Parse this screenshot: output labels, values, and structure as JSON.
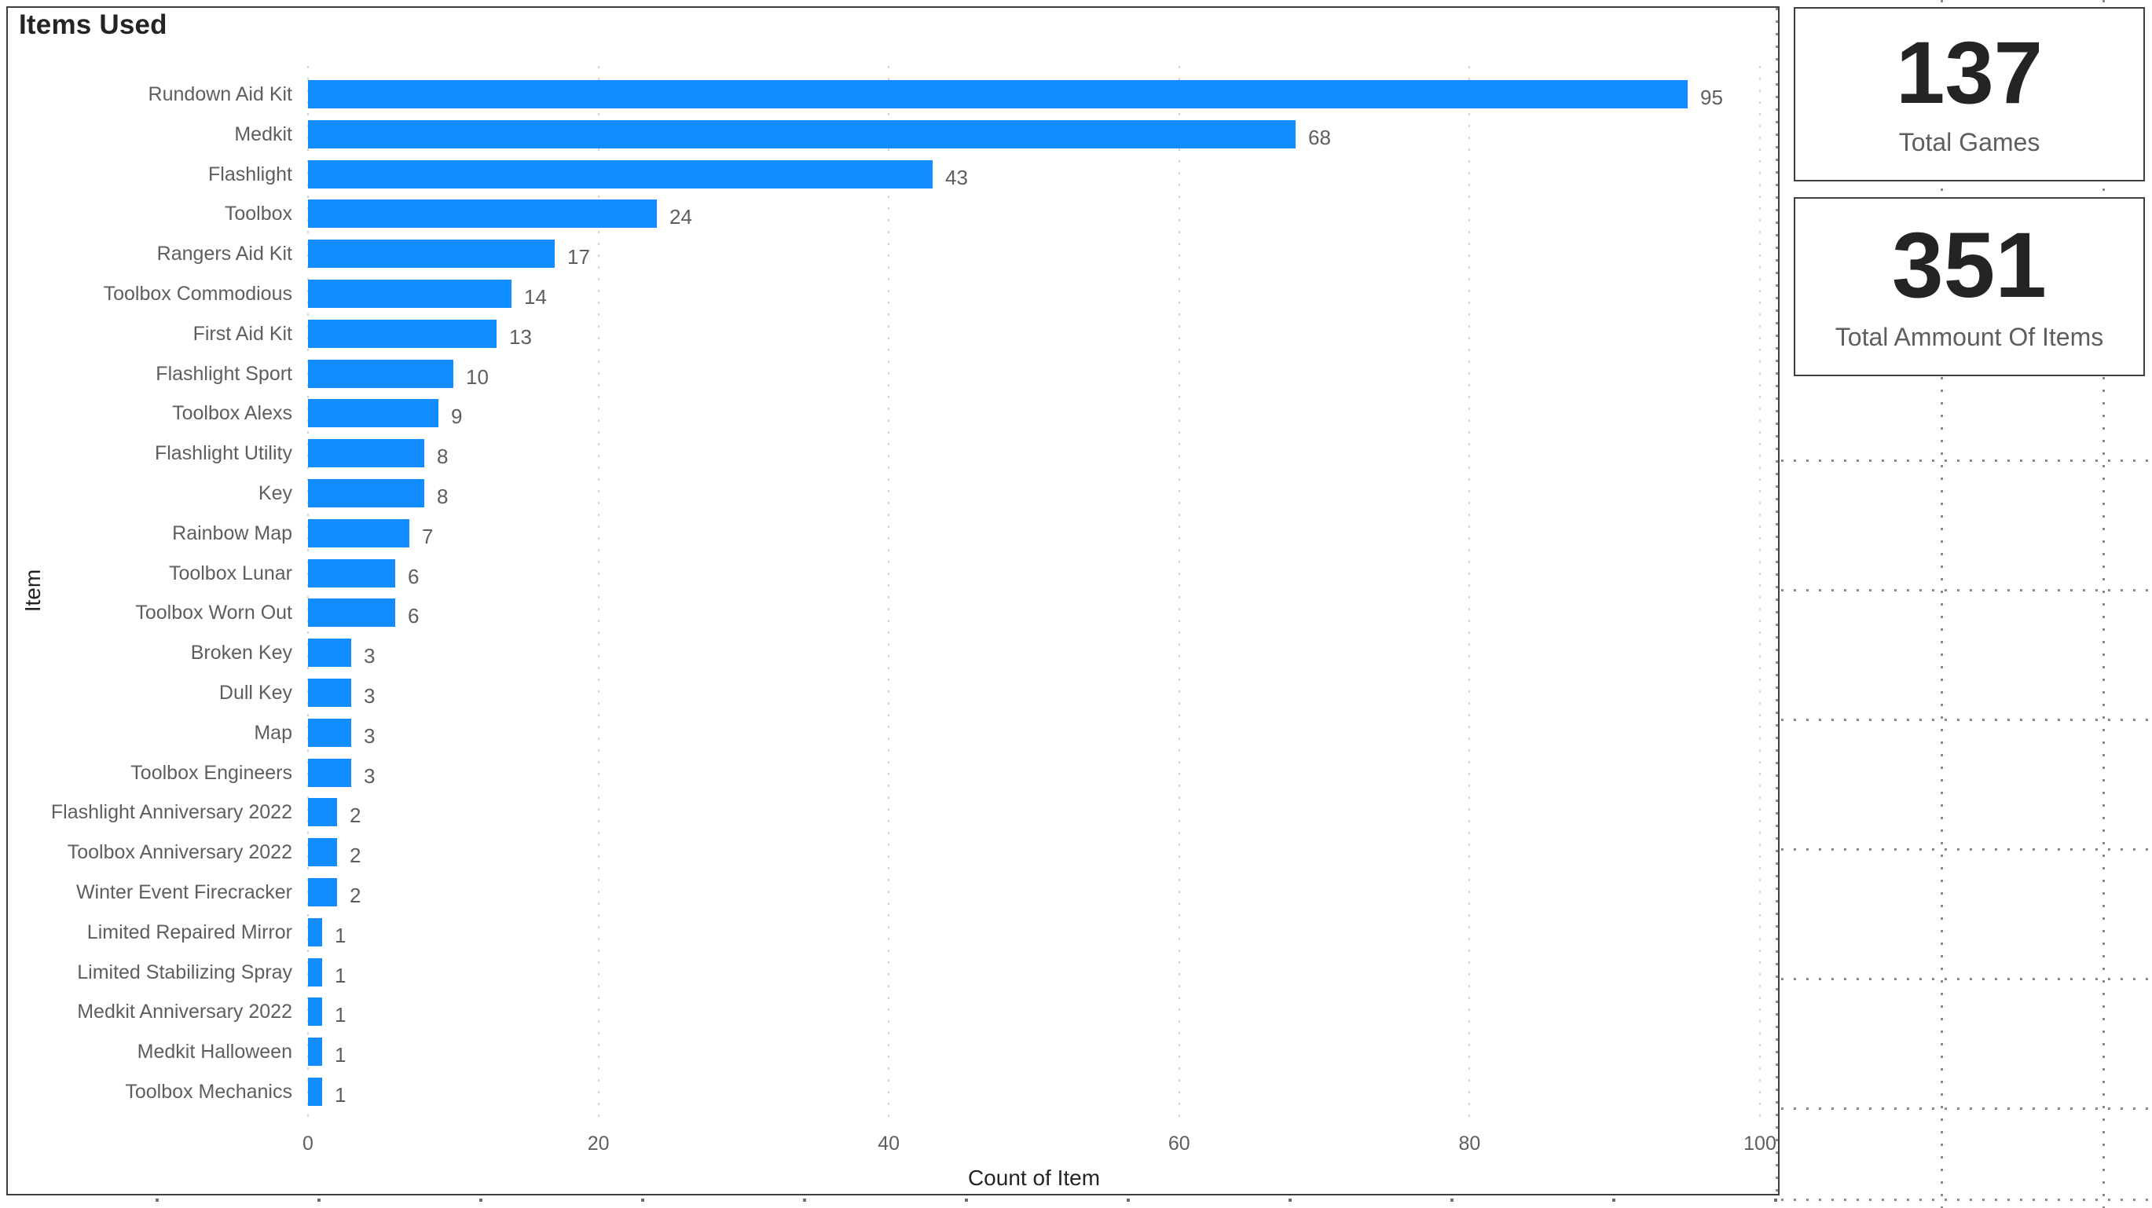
{
  "report": {
    "title": "Items Used"
  },
  "chart_data": {
    "type": "bar",
    "orientation": "horizontal",
    "title": "Items Used",
    "xlabel": "Count of Item",
    "ylabel": "Item",
    "xlim": [
      0,
      100
    ],
    "x_ticks": [
      0,
      20,
      40,
      60,
      80,
      100
    ],
    "grid": "dotted-vertical",
    "legend": "none",
    "bar_color": "#118DFF",
    "categories": [
      "Rundown Aid Kit",
      "Medkit",
      "Flashlight",
      "Toolbox",
      "Rangers Aid Kit",
      "Toolbox Commodious",
      "First Aid Kit",
      "Flashlight Sport",
      "Toolbox Alexs",
      "Flashlight Utility",
      "Key",
      "Rainbow Map",
      "Toolbox Lunar",
      "Toolbox Worn Out",
      "Broken Key",
      "Dull Key",
      "Map",
      "Toolbox Engineers",
      "Flashlight Anniversary 2022",
      "Toolbox Anniversary 2022",
      "Winter Event Firecracker",
      "Limited Repaired Mirror",
      "Limited Stabilizing Spray",
      "Medkit Anniversary 2022",
      "Medkit Halloween",
      "Toolbox Mechanics"
    ],
    "values": [
      95,
      68,
      43,
      24,
      17,
      14,
      13,
      10,
      9,
      8,
      8,
      7,
      6,
      6,
      3,
      3,
      3,
      3,
      2,
      2,
      2,
      1,
      1,
      1,
      1,
      1
    ]
  },
  "cards": [
    {
      "value": "137",
      "label": "Total Games"
    },
    {
      "value": "351",
      "label": "Total Ammount Of Items"
    }
  ],
  "colors": {
    "accent": "#118DFF",
    "title_text": "#252423",
    "secondary_text": "#605e5c",
    "visual_border": "#3f3f3f",
    "chart_gridline": "#d2d2d2",
    "canvas_grid_dot": "#8a8a8a"
  }
}
